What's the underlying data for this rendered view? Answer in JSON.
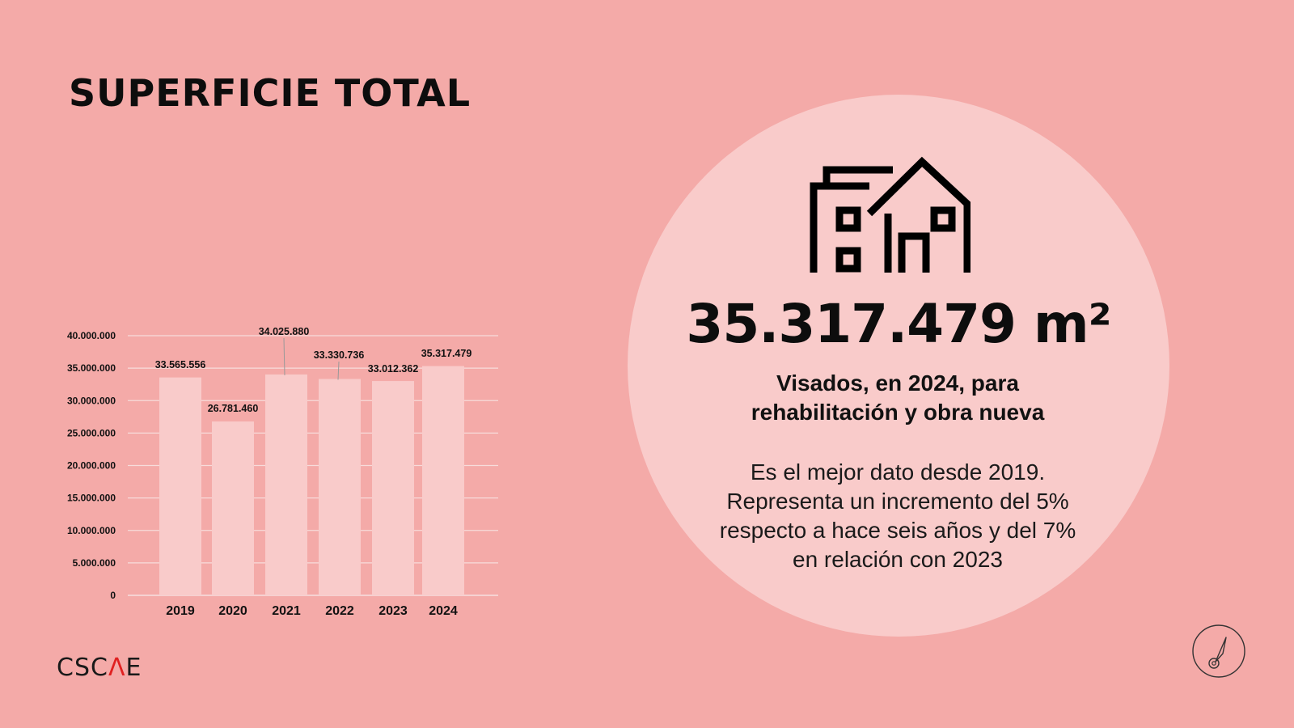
{
  "header": {
    "title": "SUPERFICIE TOTAL"
  },
  "highlight": {
    "value": "35.317.479 m²",
    "subtitle_line1": "Visados, en 2024, para",
    "subtitle_line2": "rehabilitación y obra nueva",
    "desc_lines": [
      "Es el mejor dato desde 2019.",
      "Representa un incremento del 5%",
      "respecto a hace seis años y del 7%",
      "en relación con 2023"
    ]
  },
  "logo": {
    "part1": "CSC",
    "part2": "Λ",
    "part3": "E"
  },
  "icons": {
    "house": "house-building-icon",
    "compass": "compass-icon"
  },
  "colors": {
    "background": "#f4aaa8",
    "bar": "#f9cbca",
    "circle": "#f9cbca",
    "logo_accent": "#e02020"
  },
  "chart_data": {
    "type": "bar",
    "categories": [
      "2019",
      "2020",
      "2021",
      "2022",
      "2023",
      "2024"
    ],
    "values": [
      33565556,
      26781460,
      34025880,
      33330736,
      33012362,
      35317479
    ],
    "value_labels": [
      "33.565.556",
      "26.781.460",
      "34.025.880",
      "33.330.736",
      "33.012.362",
      "35.317.479"
    ],
    "title": "",
    "xlabel": "",
    "ylabel": "",
    "ylim": [
      0,
      40000000
    ],
    "yticks": [
      0,
      5000000,
      10000000,
      15000000,
      20000000,
      25000000,
      30000000,
      35000000,
      40000000
    ],
    "ytick_labels": [
      "0",
      "5.000.000",
      "10.000.000",
      "15.000.000",
      "20.000.000",
      "25.000.000",
      "30.000.000",
      "35.000.000",
      "40.000.000"
    ],
    "grid": true
  }
}
